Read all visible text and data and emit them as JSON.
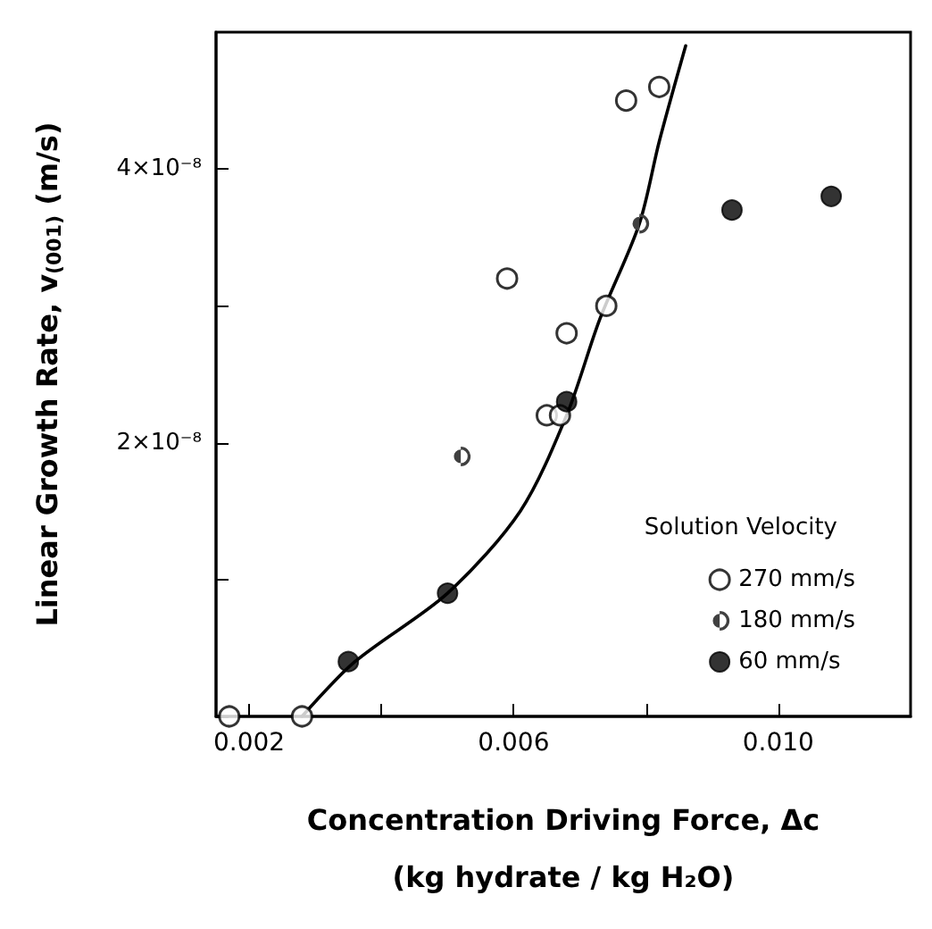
{
  "chart_data": {
    "type": "scatter",
    "xlabel": "Concentration Driving Force, Δc\n(kg hydrate / kg H₂O)",
    "ylabel": "Linear Growth Rate, v$_{(001)}$ (m/s)",
    "legend_title": "Solution Velocity",
    "xlim": [
      0.0015,
      0.012
    ],
    "ylim": [
      0,
      5e-08
    ],
    "xticks": [
      {
        "value": 0.002,
        "label": "0.002"
      },
      {
        "value": 0.004,
        "label": null
      },
      {
        "value": 0.006,
        "label": "0.006"
      },
      {
        "value": 0.008,
        "label": null
      },
      {
        "value": 0.01,
        "label": "0.010"
      }
    ],
    "yticks": [
      {
        "value": 0,
        "label": null
      },
      {
        "value": 1e-08,
        "label": null
      },
      {
        "value": 2e-08,
        "label": "2×10⁻⁸"
      },
      {
        "value": 3e-08,
        "label": null
      },
      {
        "value": 4e-08,
        "label": "4×10⁻⁸"
      }
    ],
    "grid": false,
    "legend": "bottom right",
    "marker": "circle",
    "series": [
      {
        "name": "270 mm/s",
        "color": "#ffffff",
        "x": [
          0.0017,
          0.0028,
          0.0059,
          0.0065,
          0.0067,
          0.0068,
          0.0074,
          0.0077,
          0.0082
        ],
        "values": [
          0,
          0,
          3.2e-08,
          2.2e-08,
          2.2e-08,
          2.8e-08,
          3e-08,
          4.5e-08,
          4.6e-08
        ]
      },
      {
        "name": "180 mm/s",
        "color": "#404040",
        "x": [
          0.0052,
          0.0079
        ],
        "values": [
          1.9e-08,
          3.6e-08
        ]
      },
      {
        "name": "60 mm/s",
        "color": "#000000",
        "x": [
          0.0035,
          0.005,
          0.0068,
          0.0093,
          0.0108
        ],
        "values": [
          4e-09,
          9e-09,
          2.3e-08,
          3.7e-08,
          3.8e-08
        ]
      },
      {
        "type": "line",
        "color": "#000000",
        "marker": "none",
        "line_style": "solid",
        "x": [
          0.0028,
          0.0036,
          0.005,
          0.0061,
          0.0068,
          0.0073,
          0.0079,
          0.0082,
          0.0086
        ],
        "values": [
          0,
          4e-09,
          9e-09,
          1.5e-08,
          2.2e-08,
          2.9e-08,
          3.6e-08,
          4.2e-08,
          4.9e-08
        ]
      }
    ]
  }
}
